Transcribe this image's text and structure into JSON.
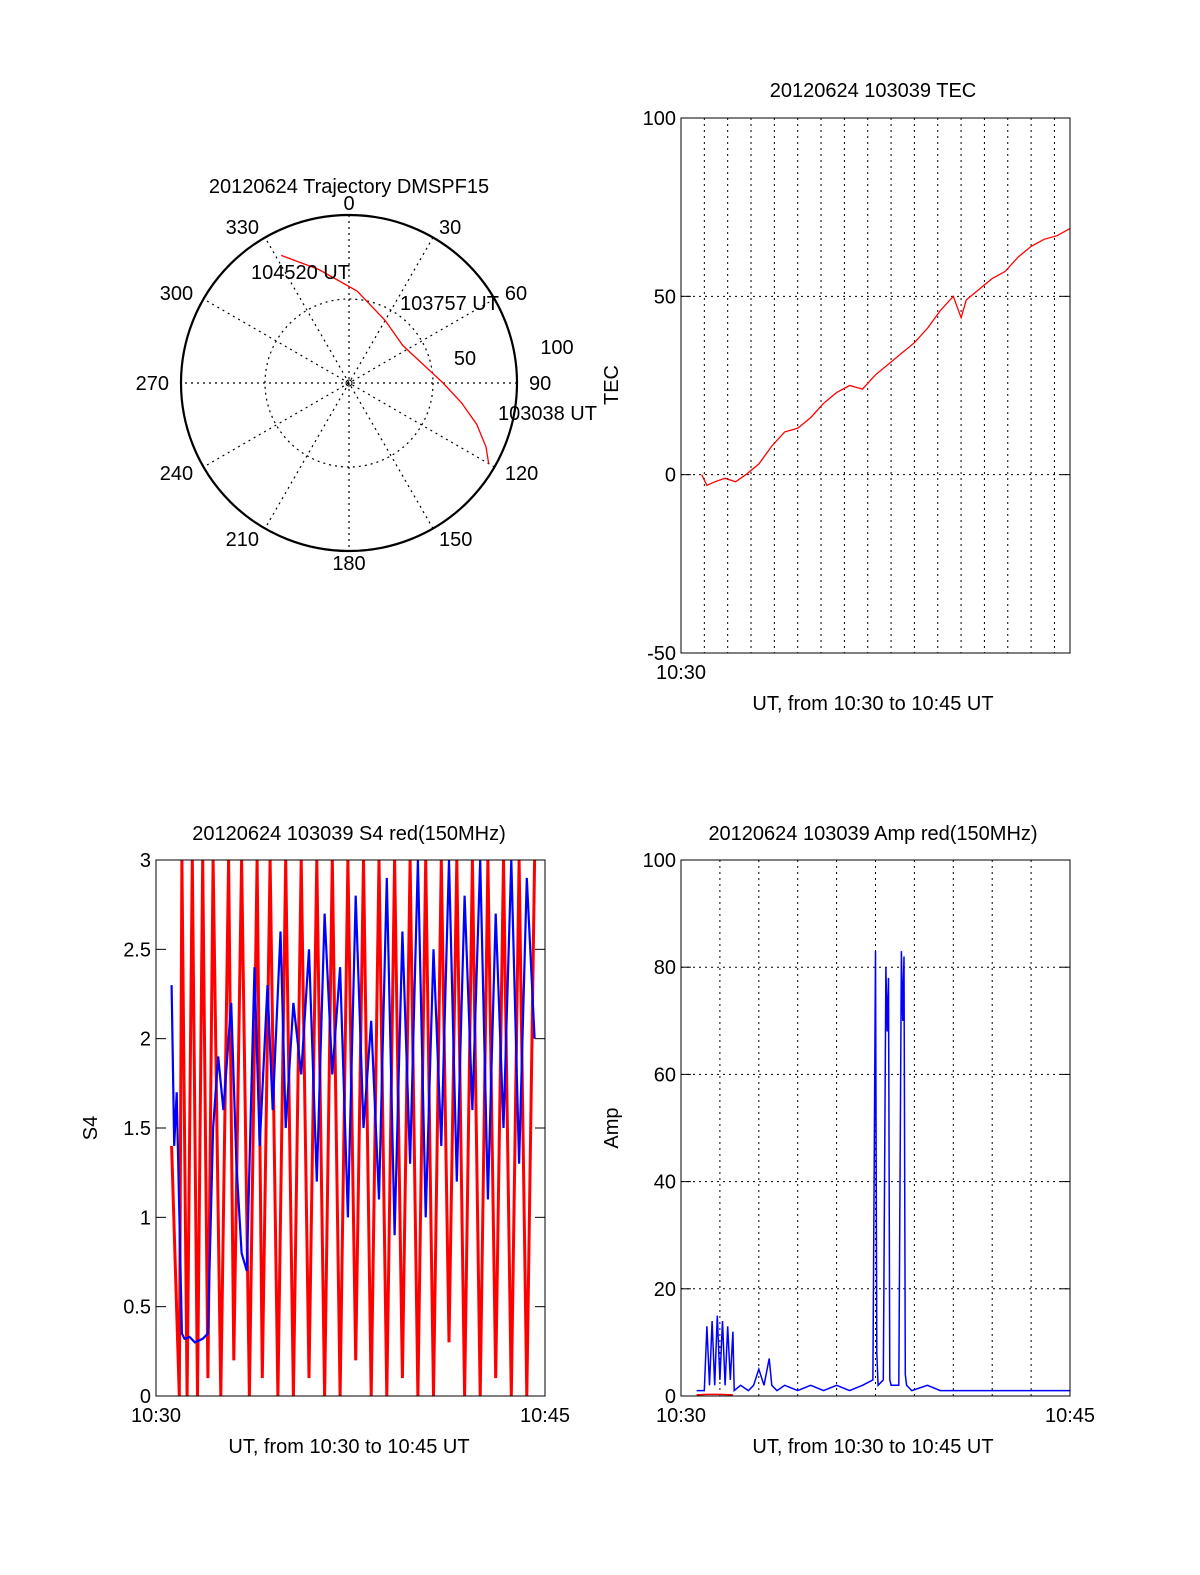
{
  "chart_data": [
    {
      "id": "trajectory",
      "type": "polar",
      "title": "20120624 Trajectory DMSPF15",
      "angle_ticks": [
        "0",
        "30",
        "60",
        "90",
        "120",
        "150",
        "180",
        "210",
        "240",
        "270",
        "300",
        "330"
      ],
      "radial_ticks": [
        "50",
        "100"
      ],
      "radial_max": 100,
      "track_color": "#ff0000",
      "track": [
        {
          "az": 120,
          "r": 96
        },
        {
          "az": 115,
          "r": 90
        },
        {
          "az": 108,
          "r": 80
        },
        {
          "az": 100,
          "r": 68
        },
        {
          "az": 90,
          "r": 56
        },
        {
          "az": 75,
          "r": 45
        },
        {
          "az": 55,
          "r": 39
        },
        {
          "az": 30,
          "r": 43
        },
        {
          "az": 5,
          "r": 55
        },
        {
          "az": -15,
          "r": 70
        },
        {
          "az": -28,
          "r": 86
        }
      ],
      "annotations": [
        {
          "text": "103038 UT",
          "az": 118,
          "r": 104
        },
        {
          "text": "103757 UT",
          "az": 57,
          "r": 69
        },
        {
          "text": "104520 UT",
          "az": -19,
          "r": 75
        }
      ]
    },
    {
      "id": "tec",
      "type": "line",
      "title": "20120624 103039 TEC",
      "xlabel": "UT, from 10:30 to 10:45 UT",
      "ylabel": "TEC",
      "ylim": [
        -50,
        100
      ],
      "yticks": [
        -50,
        0,
        50,
        100
      ],
      "xlim": [
        0,
        15
      ],
      "xtick_labels": [
        {
          "x": 0,
          "label": "10:30"
        }
      ],
      "grid": true,
      "grid_x_minutes": [
        0.9,
        1.8,
        2.7,
        3.6,
        4.5,
        5.4,
        6.3,
        7.2,
        8.1,
        9.0,
        9.9,
        10.8,
        11.7,
        12.6,
        13.5,
        14.4
      ],
      "series": [
        {
          "color": "#ff0000",
          "x": [
            0.8,
            1.0,
            1.3,
            1.7,
            2.1,
            2.5,
            3.0,
            3.5,
            4.0,
            4.5,
            5.0,
            5.5,
            6.0,
            6.5,
            7.0,
            7.5,
            8.0,
            8.5,
            9.0,
            9.5,
            10.0,
            10.5,
            10.8,
            11.0,
            11.5,
            12.0,
            12.5,
            13.0,
            13.5,
            14.0,
            14.5,
            15.0
          ],
          "y": [
            0,
            -3,
            -2,
            -1,
            -2,
            0,
            3,
            8,
            12,
            13,
            16,
            20,
            23,
            25,
            24,
            28,
            31,
            34,
            37,
            41,
            46,
            50,
            44,
            49,
            52,
            55,
            57,
            61,
            64,
            66,
            67,
            69
          ]
        }
      ]
    },
    {
      "id": "s4",
      "type": "line",
      "title": "20120624 103039 S4 red(150MHz)",
      "xlabel": "UT, from 10:30 to 10:45 UT",
      "ylabel": "S4",
      "ylim": [
        0,
        3
      ],
      "yticks": [
        0,
        0.5,
        1,
        1.5,
        2,
        2.5,
        3
      ],
      "xlim": [
        0,
        15
      ],
      "xtick_labels": [
        {
          "x": 0,
          "label": "10:30"
        },
        {
          "x": 15,
          "label": "10:45"
        }
      ],
      "series": [
        {
          "color": "#ff0000",
          "x": [
            0.6,
            0.9,
            1.0,
            1.2,
            1.4,
            1.6,
            1.8,
            2.0,
            2.2,
            2.5,
            2.8,
            3.0,
            3.3,
            3.6,
            3.9,
            4.1,
            4.4,
            4.7,
            5.0,
            5.3,
            5.6,
            5.9,
            6.2,
            6.5,
            6.8,
            7.1,
            7.4,
            7.7,
            8.0,
            8.3,
            8.6,
            8.9,
            9.2,
            9.5,
            9.8,
            10.1,
            10.4,
            10.7,
            11.0,
            11.3,
            11.6,
            11.9,
            12.2,
            12.5,
            12.8,
            13.1,
            13.4,
            13.7,
            14.0,
            14.3,
            14.6
          ],
          "y": [
            1.4,
            0.0,
            3.0,
            0.0,
            3.0,
            0.0,
            3.0,
            0.1,
            3.0,
            0.0,
            3.0,
            0.2,
            3.0,
            0.0,
            3.0,
            0.1,
            3.0,
            0.0,
            3.0,
            0.0,
            3.0,
            0.1,
            3.0,
            0.0,
            3.0,
            0.0,
            3.0,
            0.2,
            3.0,
            0.0,
            3.0,
            0.0,
            3.0,
            0.1,
            3.0,
            0.0,
            3.0,
            0.0,
            3.0,
            0.3,
            3.0,
            0.0,
            3.0,
            0.0,
            3.0,
            0.1,
            3.0,
            0.0,
            3.0,
            0.0,
            3.0
          ]
        },
        {
          "color": "#0000ff",
          "x": [
            0.6,
            0.7,
            0.8,
            1.0,
            1.1,
            1.3,
            1.5,
            1.8,
            2.0,
            2.2,
            2.4,
            2.6,
            2.9,
            3.1,
            3.3,
            3.5,
            3.8,
            4.0,
            4.3,
            4.5,
            4.8,
            5.0,
            5.3,
            5.6,
            5.9,
            6.2,
            6.5,
            6.8,
            7.1,
            7.4,
            7.7,
            8.0,
            8.3,
            8.6,
            8.9,
            9.2,
            9.5,
            9.8,
            10.1,
            10.4,
            10.7,
            11.0,
            11.3,
            11.6,
            11.9,
            12.2,
            12.5,
            12.8,
            13.1,
            13.4,
            13.7,
            14.0,
            14.3,
            14.6
          ],
          "y": [
            2.3,
            1.4,
            1.7,
            0.35,
            0.32,
            0.33,
            0.3,
            0.32,
            0.35,
            1.5,
            1.9,
            1.6,
            2.2,
            1.3,
            0.8,
            0.7,
            2.4,
            1.4,
            2.3,
            1.6,
            2.6,
            1.5,
            2.2,
            1.8,
            2.5,
            1.2,
            2.7,
            1.8,
            2.4,
            1.0,
            2.8,
            1.5,
            2.1,
            1.1,
            2.9,
            0.9,
            2.6,
            1.3,
            3.0,
            1.0,
            2.5,
            1.4,
            3.0,
            1.2,
            2.8,
            1.6,
            3.0,
            1.1,
            2.7,
            1.5,
            3.0,
            1.3,
            2.9,
            2.0
          ]
        }
      ]
    },
    {
      "id": "amp",
      "type": "line",
      "title": "20120624 103039 Amp red(150MHz)",
      "xlabel": "UT, from 10:30 to 10:45 UT",
      "ylabel": "Amp",
      "ylim": [
        0,
        100
      ],
      "yticks": [
        0,
        20,
        40,
        60,
        80,
        100
      ],
      "xlim": [
        0,
        15
      ],
      "xtick_labels": [
        {
          "x": 0,
          "label": "10:30"
        },
        {
          "x": 15,
          "label": "10:45"
        }
      ],
      "grid": true,
      "grid_x_minutes": [
        1.5,
        3.0,
        4.5,
        6.0,
        7.5,
        9.0,
        10.5,
        12.0,
        13.5
      ],
      "series": [
        {
          "color": "#0000ff",
          "x": [
            0.6,
            0.9,
            1.0,
            1.1,
            1.2,
            1.3,
            1.4,
            1.5,
            1.6,
            1.7,
            1.8,
            1.9,
            2.0,
            2.05,
            2.3,
            2.6,
            2.8,
            3.0,
            3.2,
            3.4,
            3.5,
            3.7,
            4.0,
            4.5,
            5.0,
            5.5,
            6.0,
            6.5,
            7.0,
            7.4,
            7.5,
            7.55,
            7.6,
            7.8,
            7.9,
            7.95,
            8.0,
            8.05,
            8.1,
            8.4,
            8.5,
            8.55,
            8.6,
            8.65,
            8.7,
            8.9,
            9.5,
            10.0,
            11.0,
            12.0,
            13.0,
            14.0,
            15.0
          ],
          "y": [
            1,
            1,
            13,
            2,
            14,
            2,
            15,
            3,
            14,
            2,
            13,
            3,
            12,
            1,
            2,
            1,
            2,
            5,
            2,
            7,
            2,
            1,
            2,
            1,
            2,
            1,
            2,
            1,
            2,
            3,
            83,
            8,
            2,
            3,
            80,
            68,
            78,
            3,
            2,
            2,
            83,
            70,
            82,
            4,
            2,
            1,
            2,
            1,
            1,
            1,
            1,
            1,
            1
          ]
        },
        {
          "color": "#ff0000",
          "x": [
            0.6,
            1.0,
            1.5,
            2.0
          ],
          "y": [
            0.2,
            0.3,
            0.3,
            0.2
          ]
        }
      ]
    }
  ]
}
